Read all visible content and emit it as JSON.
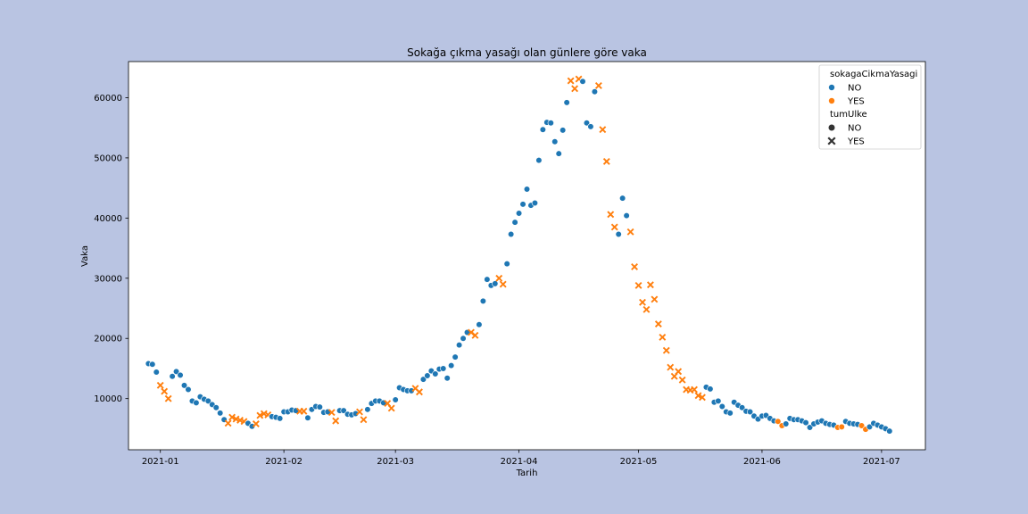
{
  "chart_data": {
    "type": "scatter",
    "title": "Sokağa çıkma yasağı olan günlere göre vaka",
    "xlabel": "Tarih",
    "ylabel": "Vaka",
    "x_type": "date",
    "xlim": [
      "2020-12-24",
      "2021-07-12"
    ],
    "ylim": [
      1500,
      66000
    ],
    "x_ticks": [
      "2021-01-01",
      "2021-02-01",
      "2021-03-01",
      "2021-04-01",
      "2021-05-01",
      "2021-06-01",
      "2021-07-01"
    ],
    "x_tick_labels": [
      "2021-01",
      "2021-02",
      "2021-03",
      "2021-04",
      "2021-05",
      "2021-06",
      "2021-07"
    ],
    "y_ticks": [
      10000,
      20000,
      30000,
      40000,
      50000,
      60000
    ],
    "y_tick_labels": [
      "10000",
      "20000",
      "30000",
      "40000",
      "50000",
      "60000"
    ],
    "grid": false,
    "legend_position": "top-right",
    "legend": {
      "hue_title": "sokagaCikmaYasagi",
      "hue_entries": [
        {
          "label": "NO",
          "color": "#1f77b4"
        },
        {
          "label": "YES",
          "color": "#ff7f0e"
        }
      ],
      "style_title": "tumUlke",
      "style_entries": [
        {
          "label": "NO",
          "marker": "circle"
        },
        {
          "label": "YES",
          "marker": "x"
        }
      ]
    },
    "colors": {
      "NO": "#1f77b4",
      "YES": "#ff7f0e"
    },
    "point_fields": [
      "date",
      "vaka",
      "sokagaCikmaYasagi",
      "tumUlke"
    ],
    "points": [
      [
        "2020-12-29",
        15800,
        "NO",
        "NO"
      ],
      [
        "2020-12-30",
        15700,
        "NO",
        "NO"
      ],
      [
        "2020-12-31",
        14400,
        "NO",
        "NO"
      ],
      [
        "2021-01-01",
        12200,
        "YES",
        "YES"
      ],
      [
        "2021-01-02",
        11200,
        "YES",
        "YES"
      ],
      [
        "2021-01-03",
        10000,
        "YES",
        "YES"
      ],
      [
        "2021-01-04",
        13700,
        "NO",
        "NO"
      ],
      [
        "2021-01-05",
        14500,
        "NO",
        "NO"
      ],
      [
        "2021-01-06",
        13900,
        "NO",
        "NO"
      ],
      [
        "2021-01-07",
        12200,
        "NO",
        "NO"
      ],
      [
        "2021-01-08",
        11500,
        "NO",
        "NO"
      ],
      [
        "2021-01-09",
        9600,
        "NO",
        "NO"
      ],
      [
        "2021-01-10",
        9300,
        "NO",
        "NO"
      ],
      [
        "2021-01-11",
        10300,
        "NO",
        "NO"
      ],
      [
        "2021-01-12",
        9900,
        "NO",
        "NO"
      ],
      [
        "2021-01-13",
        9600,
        "NO",
        "NO"
      ],
      [
        "2021-01-14",
        9000,
        "NO",
        "NO"
      ],
      [
        "2021-01-15",
        8500,
        "NO",
        "NO"
      ],
      [
        "2021-01-16",
        7600,
        "NO",
        "NO"
      ],
      [
        "2021-01-17",
        6500,
        "NO",
        "NO"
      ],
      [
        "2021-01-18",
        5900,
        "YES",
        "YES"
      ],
      [
        "2021-01-19",
        6900,
        "YES",
        "YES"
      ],
      [
        "2021-01-20",
        6600,
        "YES",
        "YES"
      ],
      [
        "2021-01-21",
        6400,
        "YES",
        "YES"
      ],
      [
        "2021-01-22",
        6200,
        "YES",
        "YES"
      ],
      [
        "2021-01-23",
        5900,
        "NO",
        "NO"
      ],
      [
        "2021-01-24",
        5400,
        "NO",
        "NO"
      ],
      [
        "2021-01-25",
        5800,
        "YES",
        "YES"
      ],
      [
        "2021-01-26",
        7200,
        "YES",
        "YES"
      ],
      [
        "2021-01-27",
        7500,
        "YES",
        "YES"
      ],
      [
        "2021-01-28",
        7300,
        "YES",
        "YES"
      ],
      [
        "2021-01-29",
        7000,
        "NO",
        "NO"
      ],
      [
        "2021-01-30",
        6900,
        "NO",
        "NO"
      ],
      [
        "2021-01-31",
        6700,
        "NO",
        "NO"
      ],
      [
        "2021-02-01",
        7800,
        "NO",
        "NO"
      ],
      [
        "2021-02-02",
        7800,
        "NO",
        "NO"
      ],
      [
        "2021-02-03",
        8100,
        "NO",
        "NO"
      ],
      [
        "2021-02-04",
        8000,
        "NO",
        "NO"
      ],
      [
        "2021-02-05",
        7900,
        "YES",
        "YES"
      ],
      [
        "2021-02-06",
        7900,
        "YES",
        "YES"
      ],
      [
        "2021-02-07",
        6800,
        "NO",
        "NO"
      ],
      [
        "2021-02-08",
        8200,
        "NO",
        "NO"
      ],
      [
        "2021-02-09",
        8700,
        "NO",
        "NO"
      ],
      [
        "2021-02-10",
        8600,
        "NO",
        "NO"
      ],
      [
        "2021-02-11",
        7700,
        "NO",
        "NO"
      ],
      [
        "2021-02-12",
        7800,
        "NO",
        "NO"
      ],
      [
        "2021-02-13",
        7700,
        "YES",
        "YES"
      ],
      [
        "2021-02-14",
        6300,
        "YES",
        "YES"
      ],
      [
        "2021-02-15",
        8000,
        "NO",
        "NO"
      ],
      [
        "2021-02-16",
        8000,
        "NO",
        "NO"
      ],
      [
        "2021-02-17",
        7400,
        "NO",
        "NO"
      ],
      [
        "2021-02-18",
        7300,
        "NO",
        "NO"
      ],
      [
        "2021-02-19",
        7500,
        "NO",
        "NO"
      ],
      [
        "2021-02-20",
        7800,
        "YES",
        "YES"
      ],
      [
        "2021-02-21",
        6500,
        "YES",
        "YES"
      ],
      [
        "2021-02-22",
        8200,
        "NO",
        "NO"
      ],
      [
        "2021-02-23",
        9200,
        "NO",
        "NO"
      ],
      [
        "2021-02-24",
        9600,
        "NO",
        "NO"
      ],
      [
        "2021-02-25",
        9600,
        "NO",
        "NO"
      ],
      [
        "2021-02-26",
        9300,
        "NO",
        "NO"
      ],
      [
        "2021-02-27",
        9200,
        "YES",
        "YES"
      ],
      [
        "2021-02-28",
        8400,
        "YES",
        "YES"
      ],
      [
        "2021-03-01",
        9800,
        "NO",
        "NO"
      ],
      [
        "2021-03-02",
        11800,
        "NO",
        "NO"
      ],
      [
        "2021-03-03",
        11500,
        "NO",
        "NO"
      ],
      [
        "2021-03-04",
        11300,
        "NO",
        "NO"
      ],
      [
        "2021-03-05",
        11300,
        "NO",
        "NO"
      ],
      [
        "2021-03-06",
        11700,
        "YES",
        "YES"
      ],
      [
        "2021-03-07",
        11100,
        "YES",
        "YES"
      ],
      [
        "2021-03-08",
        13200,
        "NO",
        "NO"
      ],
      [
        "2021-03-09",
        13800,
        "NO",
        "NO"
      ],
      [
        "2021-03-10",
        14600,
        "NO",
        "NO"
      ],
      [
        "2021-03-11",
        14100,
        "NO",
        "NO"
      ],
      [
        "2021-03-12",
        14900,
        "NO",
        "NO"
      ],
      [
        "2021-03-13",
        15000,
        "NO",
        "NO"
      ],
      [
        "2021-03-14",
        13400,
        "NO",
        "NO"
      ],
      [
        "2021-03-15",
        15500,
        "NO",
        "NO"
      ],
      [
        "2021-03-16",
        16900,
        "NO",
        "NO"
      ],
      [
        "2021-03-17",
        18900,
        "NO",
        "NO"
      ],
      [
        "2021-03-18",
        20000,
        "NO",
        "NO"
      ],
      [
        "2021-03-19",
        21000,
        "NO",
        "NO"
      ],
      [
        "2021-03-20",
        21000,
        "YES",
        "YES"
      ],
      [
        "2021-03-21",
        20500,
        "YES",
        "YES"
      ],
      [
        "2021-03-22",
        22300,
        "NO",
        "NO"
      ],
      [
        "2021-03-23",
        26200,
        "NO",
        "NO"
      ],
      [
        "2021-03-24",
        29800,
        "NO",
        "NO"
      ],
      [
        "2021-03-25",
        28800,
        "NO",
        "NO"
      ],
      [
        "2021-03-26",
        29100,
        "NO",
        "NO"
      ],
      [
        "2021-03-27",
        30000,
        "YES",
        "YES"
      ],
      [
        "2021-03-28",
        29000,
        "YES",
        "YES"
      ],
      [
        "2021-03-29",
        32400,
        "NO",
        "NO"
      ],
      [
        "2021-03-30",
        37300,
        "NO",
        "NO"
      ],
      [
        "2021-03-31",
        39300,
        "NO",
        "NO"
      ],
      [
        "2021-04-01",
        40800,
        "NO",
        "NO"
      ],
      [
        "2021-04-02",
        42300,
        "NO",
        "NO"
      ],
      [
        "2021-04-03",
        44800,
        "NO",
        "NO"
      ],
      [
        "2021-04-04",
        42100,
        "NO",
        "NO"
      ],
      [
        "2021-04-05",
        42500,
        "NO",
        "NO"
      ],
      [
        "2021-04-06",
        49600,
        "NO",
        "NO"
      ],
      [
        "2021-04-07",
        54700,
        "NO",
        "NO"
      ],
      [
        "2021-04-08",
        55900,
        "NO",
        "NO"
      ],
      [
        "2021-04-09",
        55800,
        "NO",
        "NO"
      ],
      [
        "2021-04-10",
        52700,
        "NO",
        "NO"
      ],
      [
        "2021-04-11",
        50700,
        "NO",
        "NO"
      ],
      [
        "2021-04-12",
        54600,
        "NO",
        "NO"
      ],
      [
        "2021-04-13",
        59200,
        "NO",
        "NO"
      ],
      [
        "2021-04-14",
        62800,
        "YES",
        "YES"
      ],
      [
        "2021-04-15",
        61500,
        "YES",
        "YES"
      ],
      [
        "2021-04-16",
        63100,
        "YES",
        "YES"
      ],
      [
        "2021-04-17",
        62700,
        "NO",
        "NO"
      ],
      [
        "2021-04-18",
        55800,
        "NO",
        "NO"
      ],
      [
        "2021-04-19",
        55200,
        "NO",
        "NO"
      ],
      [
        "2021-04-20",
        61000,
        "NO",
        "NO"
      ],
      [
        "2021-04-21",
        62000,
        "YES",
        "YES"
      ],
      [
        "2021-04-22",
        54700,
        "YES",
        "YES"
      ],
      [
        "2021-04-23",
        49400,
        "YES",
        "YES"
      ],
      [
        "2021-04-24",
        40600,
        "YES",
        "YES"
      ],
      [
        "2021-04-25",
        38500,
        "YES",
        "YES"
      ],
      [
        "2021-04-26",
        37300,
        "NO",
        "NO"
      ],
      [
        "2021-04-27",
        43300,
        "NO",
        "NO"
      ],
      [
        "2021-04-28",
        40400,
        "NO",
        "NO"
      ],
      [
        "2021-04-29",
        37700,
        "YES",
        "YES"
      ],
      [
        "2021-04-30",
        31900,
        "YES",
        "YES"
      ],
      [
        "2021-05-01",
        28800,
        "YES",
        "YES"
      ],
      [
        "2021-05-02",
        26000,
        "YES",
        "YES"
      ],
      [
        "2021-05-03",
        24800,
        "YES",
        "YES"
      ],
      [
        "2021-05-04",
        28900,
        "YES",
        "YES"
      ],
      [
        "2021-05-05",
        26500,
        "YES",
        "YES"
      ],
      [
        "2021-05-06",
        22400,
        "YES",
        "YES"
      ],
      [
        "2021-05-07",
        20200,
        "YES",
        "YES"
      ],
      [
        "2021-05-08",
        18000,
        "YES",
        "YES"
      ],
      [
        "2021-05-09",
        15200,
        "YES",
        "YES"
      ],
      [
        "2021-05-10",
        13700,
        "YES",
        "YES"
      ],
      [
        "2021-05-11",
        14500,
        "YES",
        "YES"
      ],
      [
        "2021-05-12",
        13100,
        "YES",
        "YES"
      ],
      [
        "2021-05-13",
        11500,
        "YES",
        "YES"
      ],
      [
        "2021-05-14",
        11400,
        "YES",
        "YES"
      ],
      [
        "2021-05-15",
        11500,
        "YES",
        "YES"
      ],
      [
        "2021-05-16",
        10500,
        "YES",
        "YES"
      ],
      [
        "2021-05-17",
        10200,
        "YES",
        "YES"
      ],
      [
        "2021-05-18",
        11900,
        "NO",
        "NO"
      ],
      [
        "2021-05-19",
        11600,
        "NO",
        "NO"
      ],
      [
        "2021-05-20",
        9400,
        "NO",
        "NO"
      ],
      [
        "2021-05-21",
        9600,
        "NO",
        "NO"
      ],
      [
        "2021-05-22",
        8700,
        "NO",
        "NO"
      ],
      [
        "2021-05-23",
        7800,
        "NO",
        "NO"
      ],
      [
        "2021-05-24",
        7600,
        "NO",
        "NO"
      ],
      [
        "2021-05-25",
        9400,
        "NO",
        "NO"
      ],
      [
        "2021-05-26",
        8900,
        "NO",
        "NO"
      ],
      [
        "2021-05-27",
        8500,
        "NO",
        "NO"
      ],
      [
        "2021-05-28",
        7900,
        "NO",
        "NO"
      ],
      [
        "2021-05-29",
        7800,
        "NO",
        "NO"
      ],
      [
        "2021-05-30",
        7100,
        "NO",
        "NO"
      ],
      [
        "2021-05-31",
        6600,
        "NO",
        "NO"
      ],
      [
        "2021-06-01",
        7100,
        "NO",
        "NO"
      ],
      [
        "2021-06-02",
        7200,
        "NO",
        "NO"
      ],
      [
        "2021-06-03",
        6700,
        "NO",
        "NO"
      ],
      [
        "2021-06-04",
        6300,
        "NO",
        "NO"
      ],
      [
        "2021-06-05",
        6200,
        "YES",
        "NO"
      ],
      [
        "2021-06-06",
        5500,
        "YES",
        "NO"
      ],
      [
        "2021-06-07",
        5800,
        "NO",
        "NO"
      ],
      [
        "2021-06-08",
        6700,
        "NO",
        "NO"
      ],
      [
        "2021-06-09",
        6500,
        "NO",
        "NO"
      ],
      [
        "2021-06-10",
        6500,
        "NO",
        "NO"
      ],
      [
        "2021-06-11",
        6300,
        "NO",
        "NO"
      ],
      [
        "2021-06-12",
        6000,
        "NO",
        "NO"
      ],
      [
        "2021-06-13",
        5200,
        "NO",
        "NO"
      ],
      [
        "2021-06-14",
        5800,
        "NO",
        "NO"
      ],
      [
        "2021-06-15",
        6100,
        "NO",
        "NO"
      ],
      [
        "2021-06-16",
        6300,
        "NO",
        "NO"
      ],
      [
        "2021-06-17",
        5900,
        "NO",
        "NO"
      ],
      [
        "2021-06-18",
        5700,
        "NO",
        "NO"
      ],
      [
        "2021-06-19",
        5600,
        "NO",
        "NO"
      ],
      [
        "2021-06-20",
        5200,
        "YES",
        "NO"
      ],
      [
        "2021-06-21",
        5300,
        "YES",
        "NO"
      ],
      [
        "2021-06-22",
        6200,
        "NO",
        "NO"
      ],
      [
        "2021-06-23",
        5900,
        "NO",
        "NO"
      ],
      [
        "2021-06-24",
        5800,
        "NO",
        "NO"
      ],
      [
        "2021-06-25",
        5700,
        "NO",
        "NO"
      ],
      [
        "2021-06-26",
        5500,
        "YES",
        "NO"
      ],
      [
        "2021-06-27",
        4900,
        "YES",
        "NO"
      ],
      [
        "2021-06-28",
        5300,
        "NO",
        "NO"
      ],
      [
        "2021-06-29",
        5900,
        "NO",
        "NO"
      ],
      [
        "2021-06-30",
        5600,
        "NO",
        "NO"
      ],
      [
        "2021-07-01",
        5300,
        "NO",
        "NO"
      ],
      [
        "2021-07-02",
        5000,
        "NO",
        "NO"
      ],
      [
        "2021-07-03",
        4600,
        "NO",
        "NO"
      ]
    ]
  }
}
